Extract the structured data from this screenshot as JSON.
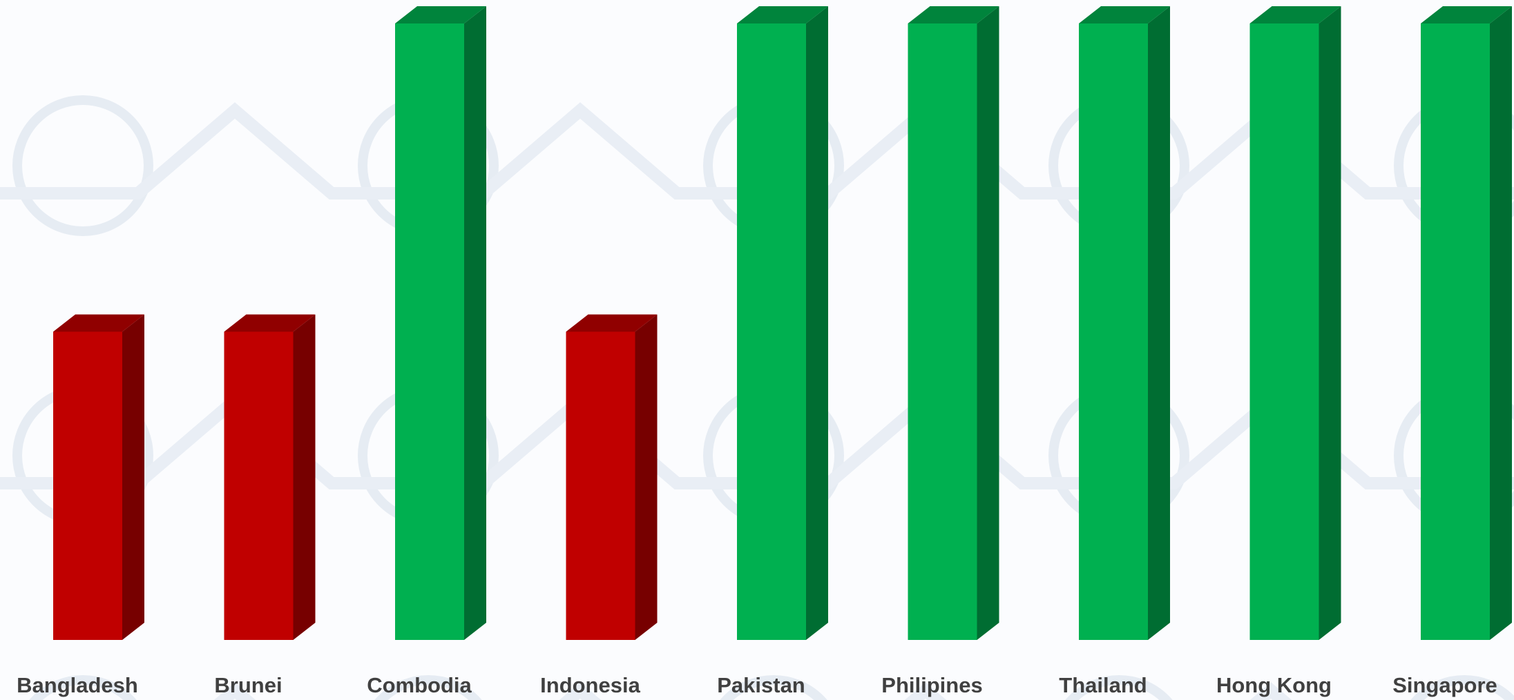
{
  "chart_data": {
    "type": "bar3d",
    "categories": [
      "Bangladesh",
      "Brunei",
      "Combodia",
      "Indonesia",
      "Pakistan",
      "Philipines",
      "Thailand",
      "Hong Kong",
      "Singapore"
    ],
    "values": [
      1,
      1,
      2,
      1,
      2,
      2,
      2,
      2,
      2
    ],
    "colors": [
      "#c00000",
      "#c00000",
      "#00b050",
      "#c00000",
      "#00b050",
      "#00b050",
      "#00b050",
      "#00b050",
      "#00b050"
    ]
  }
}
